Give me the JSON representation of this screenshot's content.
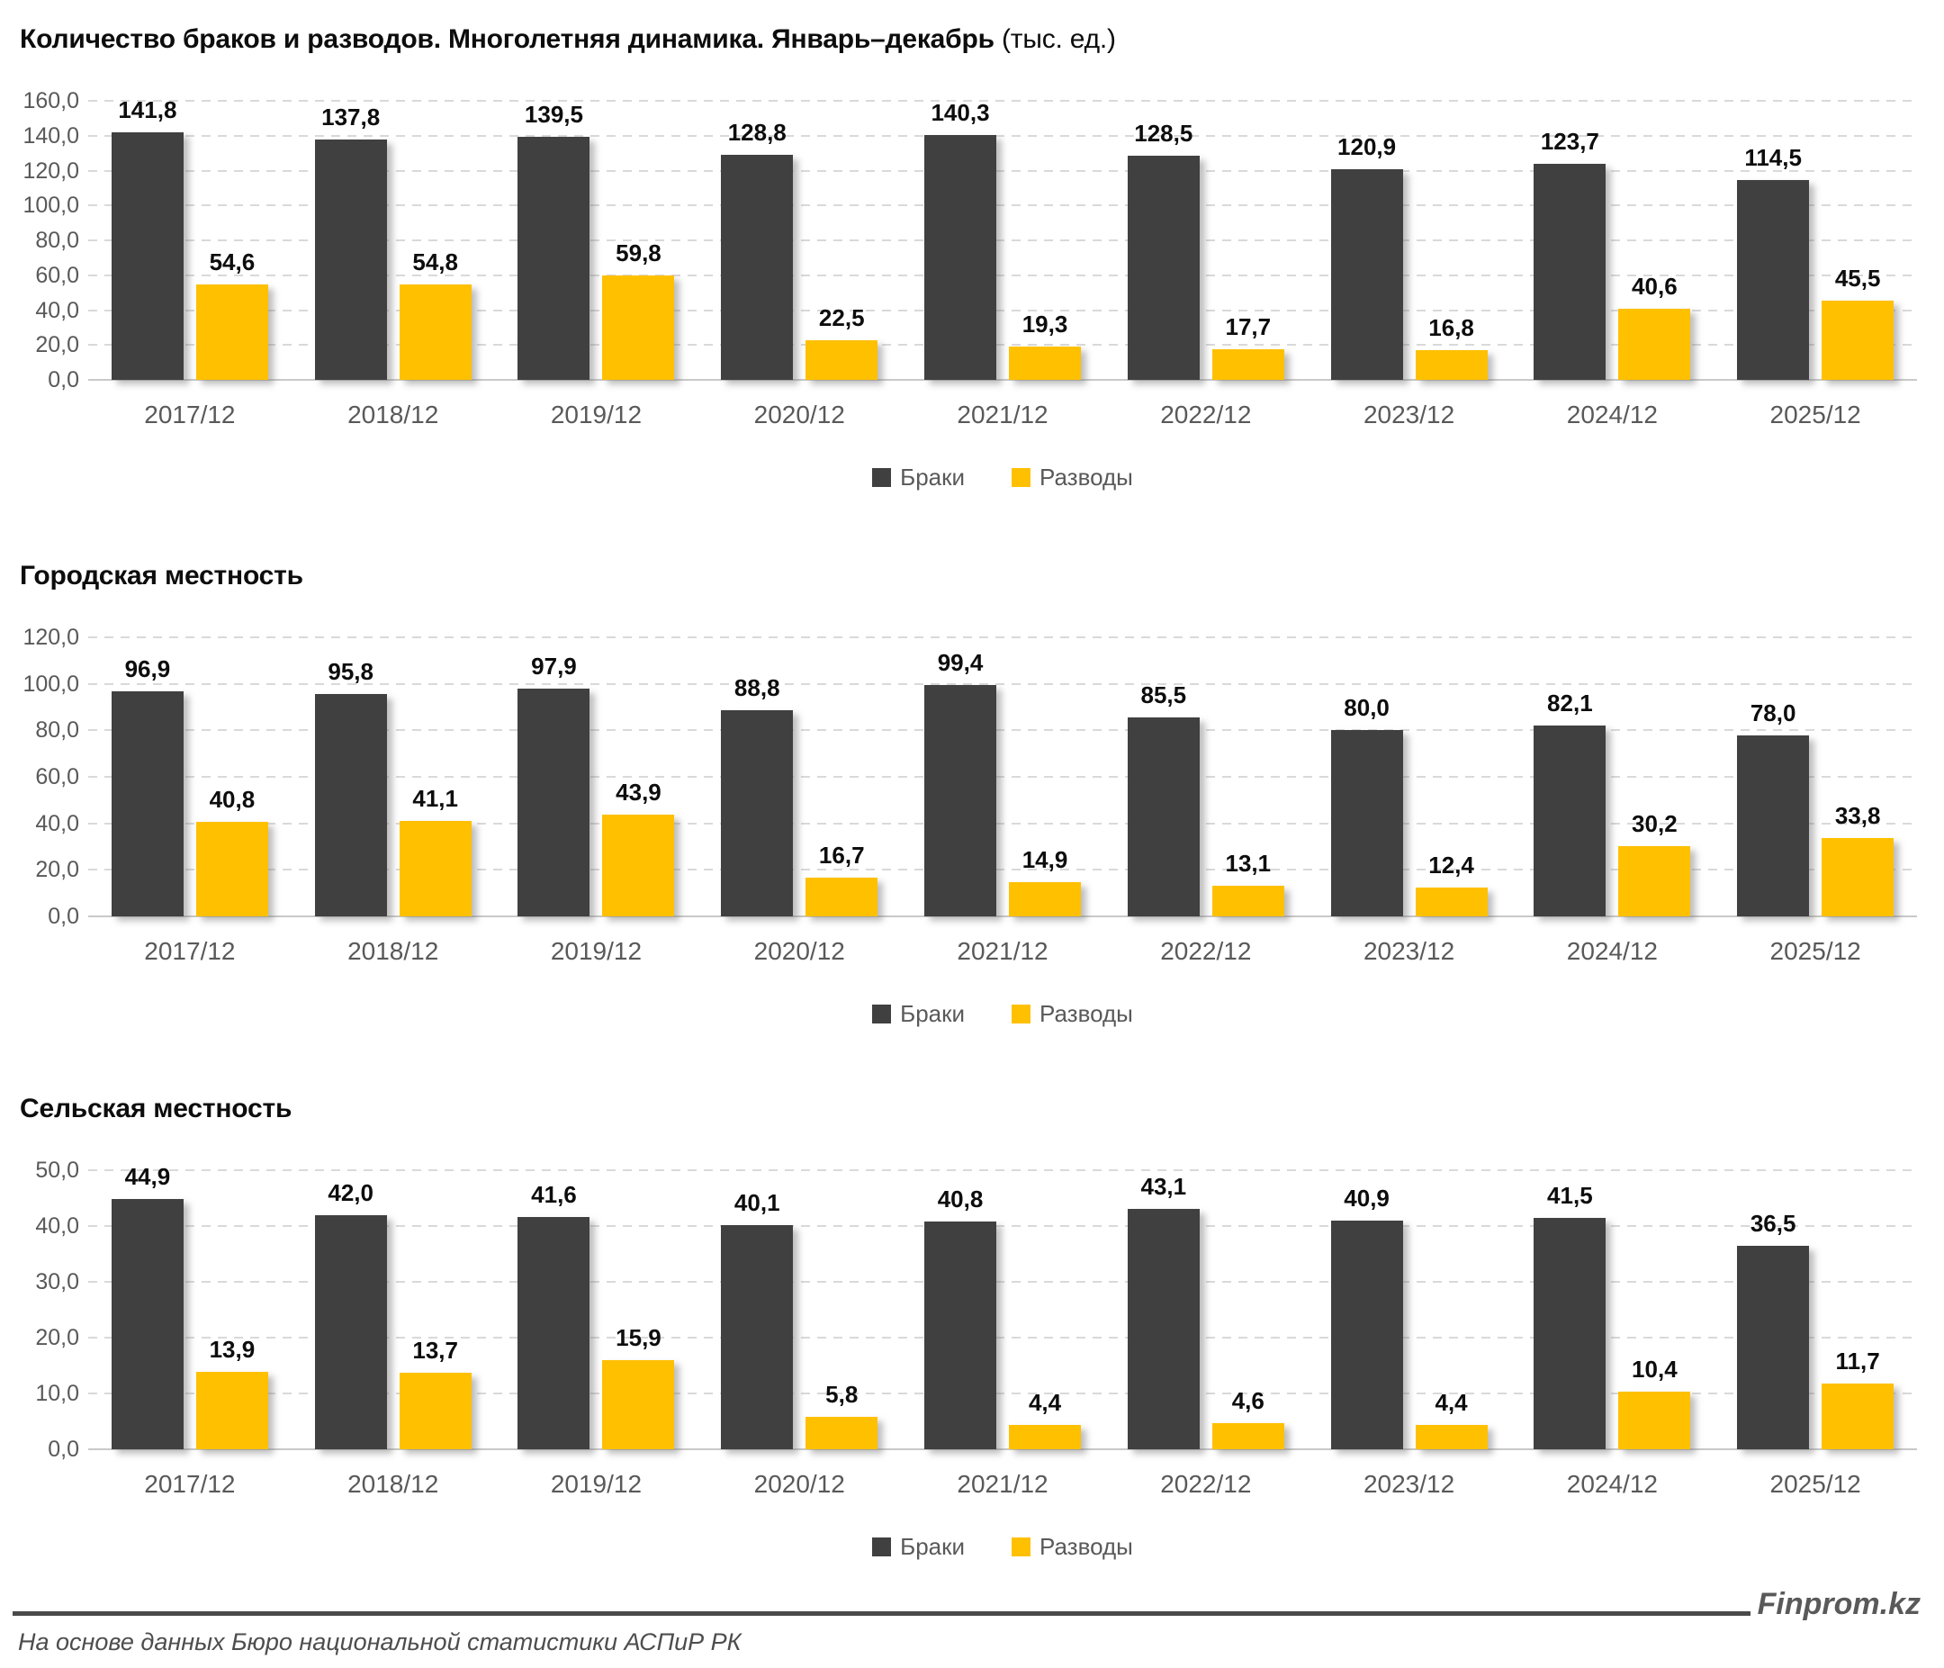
{
  "chart_data": [
    {
      "type": "bar",
      "title_main": "Количество браков и разводов. Многолетняя динамика. Январь–декабрь",
      "title_suffix": " (тыс. ед.)",
      "categories": [
        "2017/12",
        "2018/12",
        "2019/12",
        "2020/12",
        "2021/12",
        "2022/12",
        "2023/12",
        "2024/12",
        "2025/12"
      ],
      "series": [
        {
          "name": "Браки",
          "color": "#404040",
          "values": [
            141.8,
            137.8,
            139.5,
            128.8,
            140.3,
            128.5,
            120.9,
            123.7,
            114.5
          ]
        },
        {
          "name": "Разводы",
          "color": "#FFC000",
          "values": [
            54.6,
            54.8,
            59.8,
            22.5,
            19.3,
            17.7,
            16.8,
            40.6,
            45.5
          ]
        }
      ],
      "ylim": [
        0,
        160
      ],
      "y_step": 20,
      "grid": "dashed-horizontal",
      "legend_position": "bottom",
      "decimal_separator": ","
    },
    {
      "type": "bar",
      "title_main": "Городская местность",
      "title_suffix": "",
      "categories": [
        "2017/12",
        "2018/12",
        "2019/12",
        "2020/12",
        "2021/12",
        "2022/12",
        "2023/12",
        "2024/12",
        "2025/12"
      ],
      "series": [
        {
          "name": "Браки",
          "color": "#404040",
          "values": [
            96.9,
            95.8,
            97.9,
            88.8,
            99.4,
            85.5,
            80.0,
            82.1,
            78.0
          ]
        },
        {
          "name": "Разводы",
          "color": "#FFC000",
          "values": [
            40.8,
            41.1,
            43.9,
            16.7,
            14.9,
            13.1,
            12.4,
            30.2,
            33.8
          ]
        }
      ],
      "ylim": [
        0,
        120
      ],
      "y_step": 20,
      "grid": "dashed-horizontal",
      "legend_position": "bottom",
      "decimal_separator": ","
    },
    {
      "type": "bar",
      "title_main": "Сельская местность",
      "title_suffix": "",
      "categories": [
        "2017/12",
        "2018/12",
        "2019/12",
        "2020/12",
        "2021/12",
        "2022/12",
        "2023/12",
        "2024/12",
        "2025/12"
      ],
      "series": [
        {
          "name": "Браки",
          "color": "#404040",
          "values": [
            44.9,
            42.0,
            41.6,
            40.1,
            40.8,
            43.1,
            40.9,
            41.5,
            36.5
          ]
        },
        {
          "name": "Разводы",
          "color": "#FFC000",
          "values": [
            13.9,
            13.7,
            15.9,
            5.8,
            4.4,
            4.6,
            4.4,
            10.4,
            11.7
          ]
        }
      ],
      "ylim": [
        0,
        50
      ],
      "y_step": 10,
      "grid": "dashed-horizontal",
      "legend_position": "bottom",
      "decimal_separator": ","
    }
  ],
  "colors": {
    "marriages": "#404040",
    "divorces": "#FFC000",
    "gridline": "#D9D9D9",
    "axis_text": "#595959",
    "value_label": "#0D0D0D"
  },
  "footer": {
    "brand": "Finprom.kz",
    "source": "На основе данных Бюро национальной статистики АСПиР РК"
  }
}
